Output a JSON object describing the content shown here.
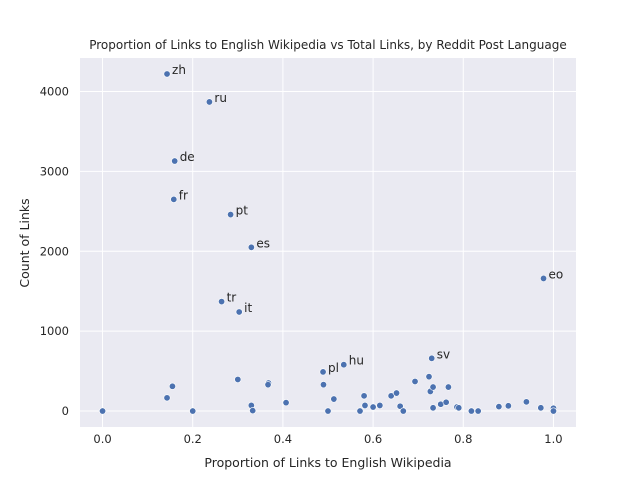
{
  "chart_data": {
    "type": "scatter",
    "title": "Proportion of Links to English Wikipedia vs Total Links, by Reddit Post Language",
    "xlabel": "Proportion of Links to English Wikipedia",
    "ylabel": "Count of Links",
    "xlim": [
      -0.05,
      1.05
    ],
    "ylim": [
      -200,
      4420
    ],
    "xticks": [
      0.0,
      0.2,
      0.4,
      0.6,
      0.8,
      1.0
    ],
    "xtick_labels": [
      "0.0",
      "0.2",
      "0.4",
      "0.6",
      "0.8",
      "1.0"
    ],
    "yticks": [
      0,
      1000,
      2000,
      3000,
      4000
    ],
    "ytick_labels": [
      "0",
      "1000",
      "2000",
      "3000",
      "4000"
    ],
    "grid": true,
    "background": "#eaeaf2",
    "point_color": "#4c72b0",
    "points": [
      {
        "x": 0.143,
        "y": 4220,
        "label": "zh"
      },
      {
        "x": 0.237,
        "y": 3870,
        "label": "ru"
      },
      {
        "x": 0.16,
        "y": 3130,
        "label": "de"
      },
      {
        "x": 0.158,
        "y": 2650,
        "label": "fr"
      },
      {
        "x": 0.284,
        "y": 2460,
        "label": "pt"
      },
      {
        "x": 0.33,
        "y": 2050,
        "label": "es"
      },
      {
        "x": 0.264,
        "y": 1370,
        "label": "tr"
      },
      {
        "x": 0.303,
        "y": 1240,
        "label": "it"
      },
      {
        "x": 0.978,
        "y": 1660,
        "label": "eo"
      },
      {
        "x": 0.535,
        "y": 580,
        "label": "hu"
      },
      {
        "x": 0.489,
        "y": 490,
        "label": "pl"
      },
      {
        "x": 0.73,
        "y": 660,
        "label": "sv"
      },
      {
        "x": 0.0,
        "y": 0
      },
      {
        "x": 0.143,
        "y": 165
      },
      {
        "x": 0.155,
        "y": 310
      },
      {
        "x": 0.2,
        "y": 0
      },
      {
        "x": 0.3,
        "y": 395
      },
      {
        "x": 0.33,
        "y": 70
      },
      {
        "x": 0.333,
        "y": 5
      },
      {
        "x": 0.368,
        "y": 350
      },
      {
        "x": 0.367,
        "y": 330
      },
      {
        "x": 0.407,
        "y": 105
      },
      {
        "x": 0.49,
        "y": 330
      },
      {
        "x": 0.5,
        "y": 0
      },
      {
        "x": 0.513,
        "y": 150
      },
      {
        "x": 0.571,
        "y": 0
      },
      {
        "x": 0.58,
        "y": 190
      },
      {
        "x": 0.582,
        "y": 70
      },
      {
        "x": 0.6,
        "y": 50
      },
      {
        "x": 0.615,
        "y": 70
      },
      {
        "x": 0.64,
        "y": 190
      },
      {
        "x": 0.652,
        "y": 225
      },
      {
        "x": 0.66,
        "y": 60
      },
      {
        "x": 0.667,
        "y": 0
      },
      {
        "x": 0.693,
        "y": 370
      },
      {
        "x": 0.724,
        "y": 430
      },
      {
        "x": 0.727,
        "y": 245
      },
      {
        "x": 0.733,
        "y": 300
      },
      {
        "x": 0.733,
        "y": 40
      },
      {
        "x": 0.75,
        "y": 85
      },
      {
        "x": 0.762,
        "y": 110
      },
      {
        "x": 0.767,
        "y": 300
      },
      {
        "x": 0.786,
        "y": 50
      },
      {
        "x": 0.79,
        "y": 40
      },
      {
        "x": 0.818,
        "y": 0
      },
      {
        "x": 0.833,
        "y": 0
      },
      {
        "x": 0.879,
        "y": 55
      },
      {
        "x": 0.9,
        "y": 65
      },
      {
        "x": 0.94,
        "y": 115
      },
      {
        "x": 0.972,
        "y": 40
      },
      {
        "x": 1.0,
        "y": 35
      },
      {
        "x": 1.0,
        "y": 0
      }
    ]
  }
}
